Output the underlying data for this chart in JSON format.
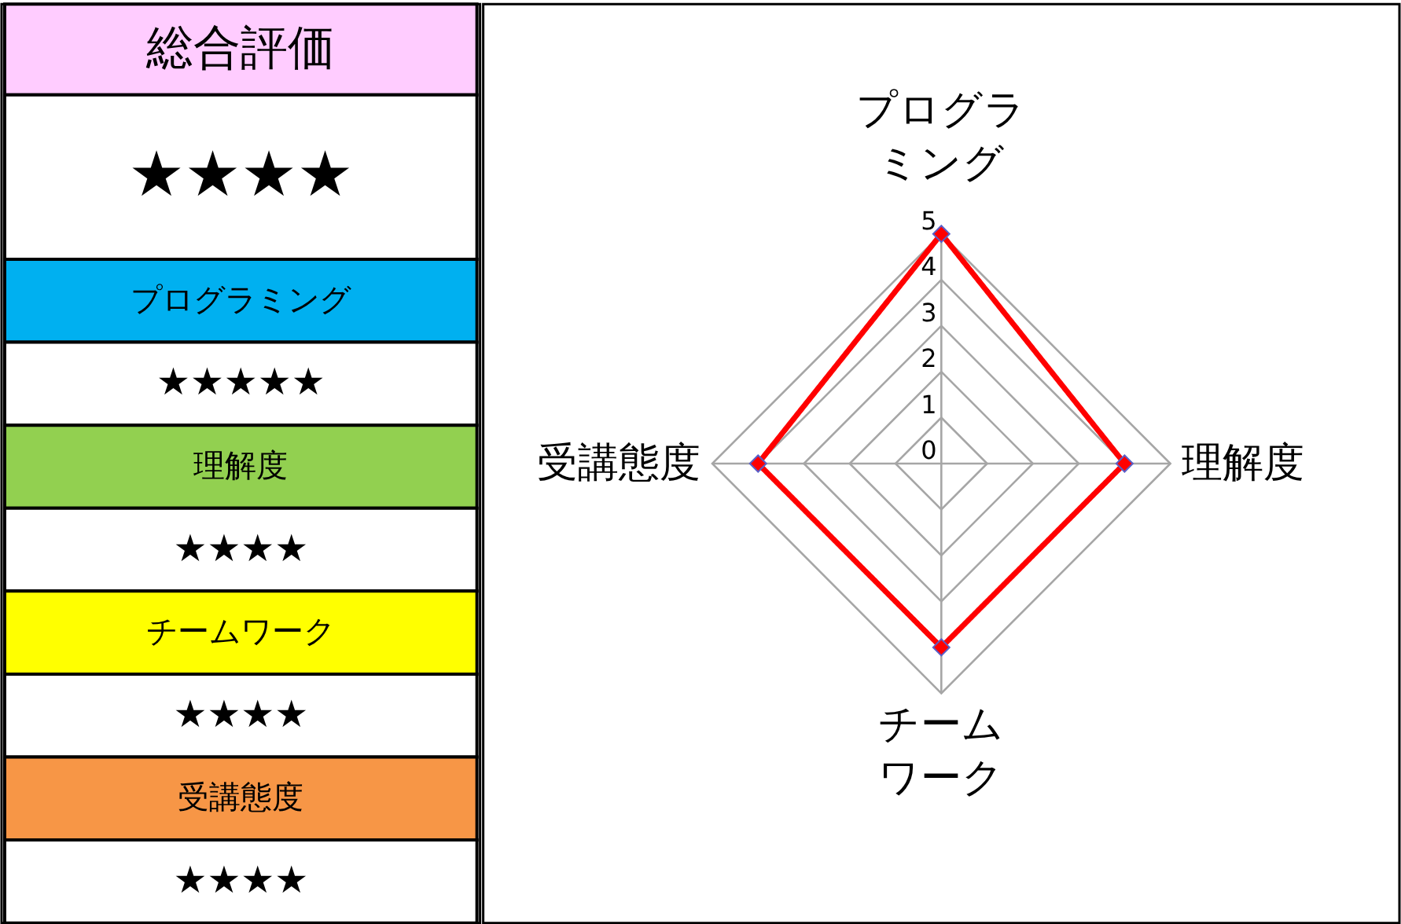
{
  "chart_data": [
    {
      "type": "other",
      "annotations": [
        "総合評価",
        "★★★★",
        "プログラミング",
        "★★★★★",
        "理解度",
        "★★★★",
        "チームワーク",
        "★★★★",
        "受講態度",
        "★★★★"
      ]
    },
    {
      "type": "radar",
      "categories": [
        "プログラミング",
        "理解度",
        "チームワーク",
        "受講態度"
      ],
      "series": [
        {
          "color": "#ff0000",
          "values": [
            5,
            4,
            4,
            4
          ]
        }
      ],
      "ylim": [
        0,
        5
      ],
      "yticks": [
        0,
        1,
        2,
        3,
        4,
        5
      ],
      "grid": true,
      "marker": "diamond",
      "line_style": "solid"
    }
  ]
}
